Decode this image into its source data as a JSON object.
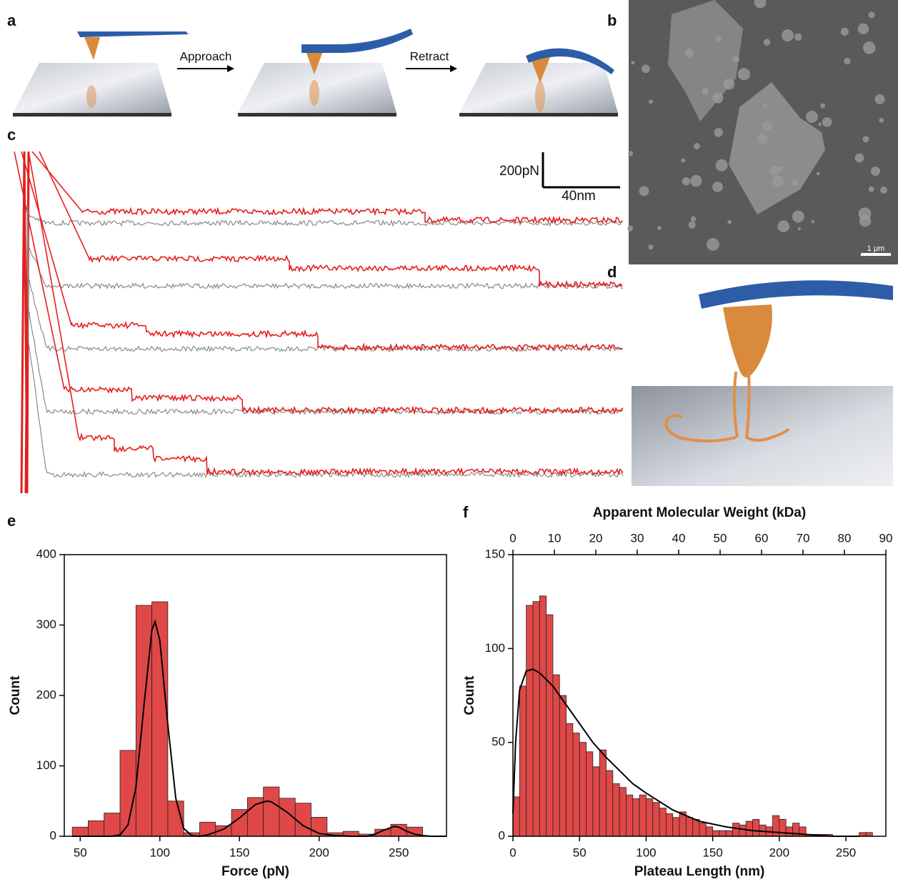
{
  "panel_labels": [
    "a",
    "b",
    "c",
    "d",
    "e",
    "f"
  ],
  "panel_a": {
    "approach": "Approach",
    "retract": "Retract"
  },
  "panel_b": {
    "scale_bar": "1 μm"
  },
  "panel_c": {
    "force_scale": "200pN",
    "distance_scale": "40nm"
  },
  "chart_data": [
    {
      "type": "histogram",
      "x_label": "Force (pN)",
      "y_label": "Count",
      "color": "#e04848",
      "bins": [
        45,
        55,
        65,
        75,
        85,
        95,
        105,
        115,
        125,
        135,
        145,
        155,
        165,
        175,
        185,
        195,
        205,
        215,
        225,
        235,
        245,
        255,
        265
      ],
      "values": [
        13,
        22,
        33,
        122,
        328,
        333,
        50,
        5,
        20,
        15,
        38,
        55,
        70,
        54,
        47,
        27,
        5,
        7,
        3,
        10,
        17,
        13
      ],
      "xlim": [
        40,
        280
      ],
      "xticks": [
        50,
        100,
        150,
        200,
        250
      ],
      "ylim": [
        0,
        400
      ],
      "yticks": [
        0,
        100,
        200,
        300,
        400
      ],
      "fit_curve": {
        "color": "#000000",
        "x": [
          45,
          70,
          75,
          80,
          85,
          90,
          95,
          97,
          100,
          105,
          110,
          115,
          120,
          125,
          130,
          140,
          150,
          160,
          167,
          170,
          180,
          190,
          200,
          210,
          220,
          230,
          235,
          240,
          247,
          250,
          255,
          260,
          265,
          270,
          280
        ],
        "values": [
          0,
          0,
          2,
          16,
          70,
          185,
          293,
          305,
          278,
          159,
          54,
          11,
          1,
          0,
          2,
          10,
          26,
          45,
          50,
          49,
          34,
          15,
          4,
          1,
          0,
          0,
          3,
          8,
          14,
          13,
          7,
          3,
          1,
          0,
          0
        ]
      }
    },
    {
      "type": "histogram",
      "x_label": "Plateau Length (nm)",
      "y_label": "Count",
      "x2_label": "Apparent Molecular Weight (kDa)",
      "color": "#e04848",
      "bins": [
        0,
        5,
        10,
        15,
        20,
        25,
        30,
        35,
        40,
        45,
        50,
        55,
        60,
        65,
        70,
        75,
        80,
        85,
        90,
        95,
        100,
        105,
        110,
        115,
        120,
        125,
        130,
        135,
        140,
        145,
        150,
        155,
        160,
        165,
        170,
        175,
        180,
        185,
        190,
        195,
        200,
        205,
        210,
        215,
        220,
        225,
        230,
        235,
        240,
        245,
        250,
        255,
        260,
        265,
        270
      ],
      "values": [
        21,
        80,
        123,
        125,
        128,
        118,
        86,
        75,
        60,
        55,
        50,
        45,
        37,
        46,
        35,
        28,
        26,
        22,
        20,
        22,
        20,
        18,
        15,
        12,
        10,
        13,
        10,
        9,
        7,
        5,
        3,
        3,
        3,
        7,
        6,
        8,
        9,
        6,
        5,
        11,
        9,
        5,
        7,
        5,
        1,
        1,
        1,
        1,
        0,
        0,
        0,
        0,
        2,
        2
      ],
      "xlim": [
        0,
        280
      ],
      "xticks": [
        0,
        50,
        100,
        150,
        200,
        250
      ],
      "x2lim": [
        0,
        90
      ],
      "x2ticks": [
        0,
        10,
        20,
        30,
        40,
        50,
        60,
        70,
        80,
        90
      ],
      "ylim": [
        0,
        150
      ],
      "yticks": [
        0,
        50,
        100,
        150
      ],
      "fit_curve": {
        "color": "#000000",
        "x": [
          0,
          2,
          5,
          10,
          15,
          20,
          30,
          40,
          50,
          60,
          70,
          80,
          90,
          100,
          120,
          140,
          160,
          180,
          200,
          220,
          240,
          260
        ],
        "values": [
          12,
          50,
          78,
          88,
          89,
          87,
          80,
          70,
          60,
          50,
          42,
          35,
          28,
          23,
          14,
          8,
          5,
          3,
          2,
          1,
          0,
          0
        ]
      }
    }
  ]
}
